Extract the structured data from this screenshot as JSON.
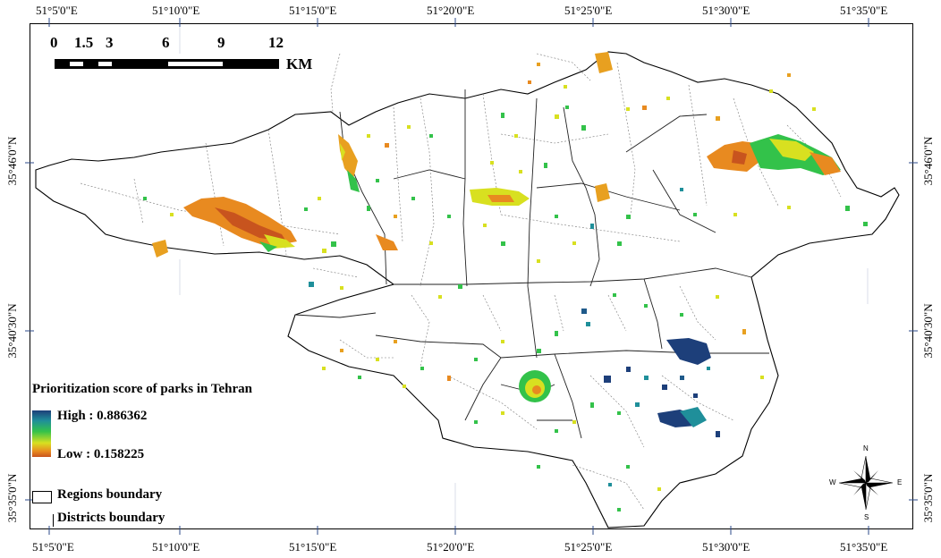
{
  "top_labels": [
    "51°5'0\"E",
    "51°10'0\"E",
    "51°15'0\"E",
    "51°20'0\"E",
    "51°25'0\"E",
    "51°30'0\"E",
    "51°35'0\"E"
  ],
  "bottom_labels": [
    "51°5'0\"E",
    "51°10'0\"E",
    "51°15'0\"E",
    "51°20'0\"E",
    "51°25'0\"E",
    "51°30'0\"E",
    "51°35'0\"E"
  ],
  "left_labels": [
    "35°46'0\"N",
    "35°40'30\"N",
    "35°35'0\"N"
  ],
  "right_labels": [
    "35°46'0\"N",
    "35°40'30\"N",
    "35°35'0\"N"
  ],
  "scale_bar": {
    "labels": [
      "0",
      "1.5",
      "3",
      "6",
      "9",
      "12"
    ],
    "unit": "KM"
  },
  "legend": {
    "title": "Prioritization score of parks in Tehran",
    "high": "High : 0.886362",
    "low": "Low : 0.158225",
    "regions": "Regions boundary",
    "districts": "Districts boundary"
  },
  "compass": {
    "n": "N",
    "s": "S",
    "e": "E",
    "w": "W"
  },
  "colors": {
    "high": "#1d3f7a",
    "mid_high": "#1f8f9a",
    "mid": "#33c24a",
    "mid_low": "#d8e020",
    "low": "#e88a20",
    "lowest": "#c8541e"
  }
}
